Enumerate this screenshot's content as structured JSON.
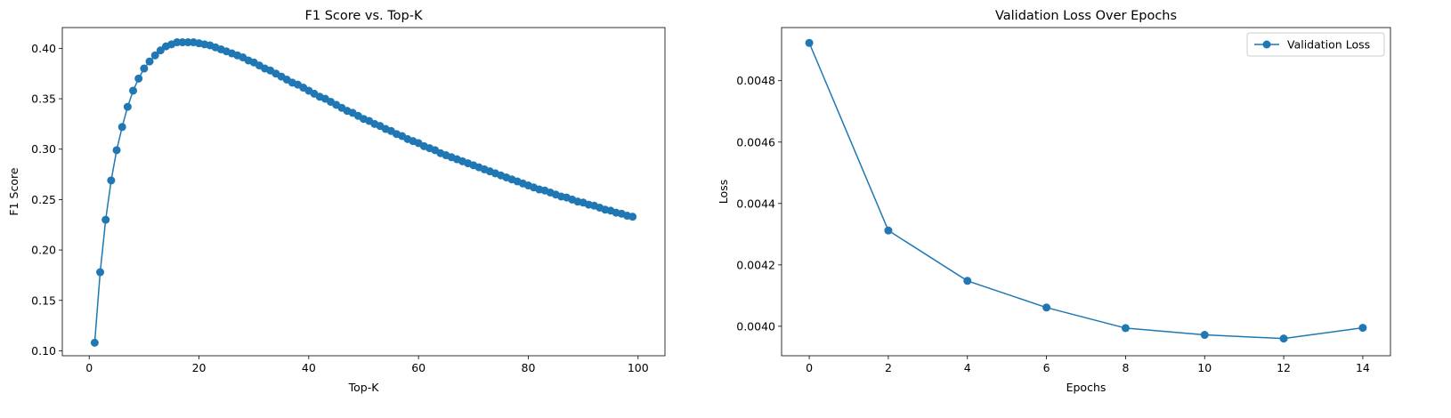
{
  "chart_data": [
    {
      "type": "line",
      "title": "F1 Score vs. Top-K",
      "xlabel": "Top-K",
      "ylabel": "F1 Score",
      "xlim": [
        -4.9,
        104.9
      ],
      "ylim": [
        0.0951,
        0.4206
      ],
      "xticks": [
        0,
        20,
        40,
        60,
        80,
        100
      ],
      "yticks": [
        0.1,
        0.15,
        0.2,
        0.25,
        0.3,
        0.35,
        0.4
      ],
      "ytick_labels": [
        "0.10",
        "0.15",
        "0.20",
        "0.25",
        "0.30",
        "0.35",
        "0.40"
      ],
      "marker": "circle",
      "color": "#1f77b4",
      "grid": false,
      "series": [
        {
          "x": [
            1,
            2,
            3,
            4,
            5,
            6,
            7,
            8,
            9,
            10,
            11,
            12,
            13,
            14,
            15,
            16,
            17,
            18,
            19,
            20,
            21,
            22,
            23,
            24,
            25,
            26,
            27,
            28,
            29,
            30,
            31,
            32,
            33,
            34,
            35,
            36,
            37,
            38,
            39,
            40,
            41,
            42,
            43,
            44,
            45,
            46,
            47,
            48,
            49,
            50,
            51,
            52,
            53,
            54,
            55,
            56,
            57,
            58,
            59,
            60,
            61,
            62,
            63,
            64,
            65,
            66,
            67,
            68,
            69,
            70,
            71,
            72,
            73,
            74,
            75,
            76,
            77,
            78,
            79,
            80,
            81,
            82,
            83,
            84,
            85,
            86,
            87,
            88,
            89,
            90,
            91,
            92,
            93,
            94,
            95,
            96,
            97,
            98,
            99
          ],
          "y": [
            0.108,
            0.178,
            0.23,
            0.269,
            0.299,
            0.322,
            0.342,
            0.358,
            0.37,
            0.38,
            0.387,
            0.393,
            0.398,
            0.402,
            0.404,
            0.406,
            0.406,
            0.406,
            0.406,
            0.405,
            0.404,
            0.403,
            0.401,
            0.399,
            0.397,
            0.395,
            0.393,
            0.391,
            0.388,
            0.386,
            0.383,
            0.38,
            0.378,
            0.375,
            0.372,
            0.369,
            0.366,
            0.364,
            0.361,
            0.358,
            0.355,
            0.352,
            0.35,
            0.347,
            0.344,
            0.341,
            0.338,
            0.336,
            0.333,
            0.33,
            0.328,
            0.325,
            0.323,
            0.32,
            0.318,
            0.315,
            0.313,
            0.31,
            0.308,
            0.306,
            0.303,
            0.301,
            0.299,
            0.296,
            0.294,
            0.292,
            0.29,
            0.288,
            0.286,
            0.284,
            0.282,
            0.28,
            0.278,
            0.276,
            0.274,
            0.272,
            0.27,
            0.268,
            0.266,
            0.264,
            0.262,
            0.26,
            0.259,
            0.257,
            0.255,
            0.253,
            0.252,
            0.25,
            0.248,
            0.247,
            0.245,
            0.244,
            0.242,
            0.24,
            0.239,
            0.237,
            0.236,
            0.234,
            0.233
          ]
        }
      ]
    },
    {
      "type": "line",
      "title": "Validation Loss Over Epochs",
      "xlabel": "Epochs",
      "ylabel": "Loss",
      "xlim": [
        -0.7,
        14.7
      ],
      "ylim": [
        0.003904,
        0.004973
      ],
      "xticks": [
        0,
        2,
        4,
        6,
        8,
        10,
        12,
        14
      ],
      "yticks": [
        0.004,
        0.0042,
        0.0044,
        0.0046,
        0.0048
      ],
      "ytick_labels": [
        "0.0040",
        "0.0042",
        "0.0044",
        "0.0046",
        "0.0048"
      ],
      "marker": "circle",
      "color": "#1f77b4",
      "grid": false,
      "legend": "top-right",
      "series": [
        {
          "name": "Validation Loss",
          "x": [
            0,
            2,
            4,
            6,
            8,
            10,
            12,
            14
          ],
          "y": [
            0.004923,
            0.004312,
            0.004148,
            0.004061,
            0.003994,
            0.003972,
            0.00396,
            0.003995
          ]
        }
      ]
    }
  ]
}
